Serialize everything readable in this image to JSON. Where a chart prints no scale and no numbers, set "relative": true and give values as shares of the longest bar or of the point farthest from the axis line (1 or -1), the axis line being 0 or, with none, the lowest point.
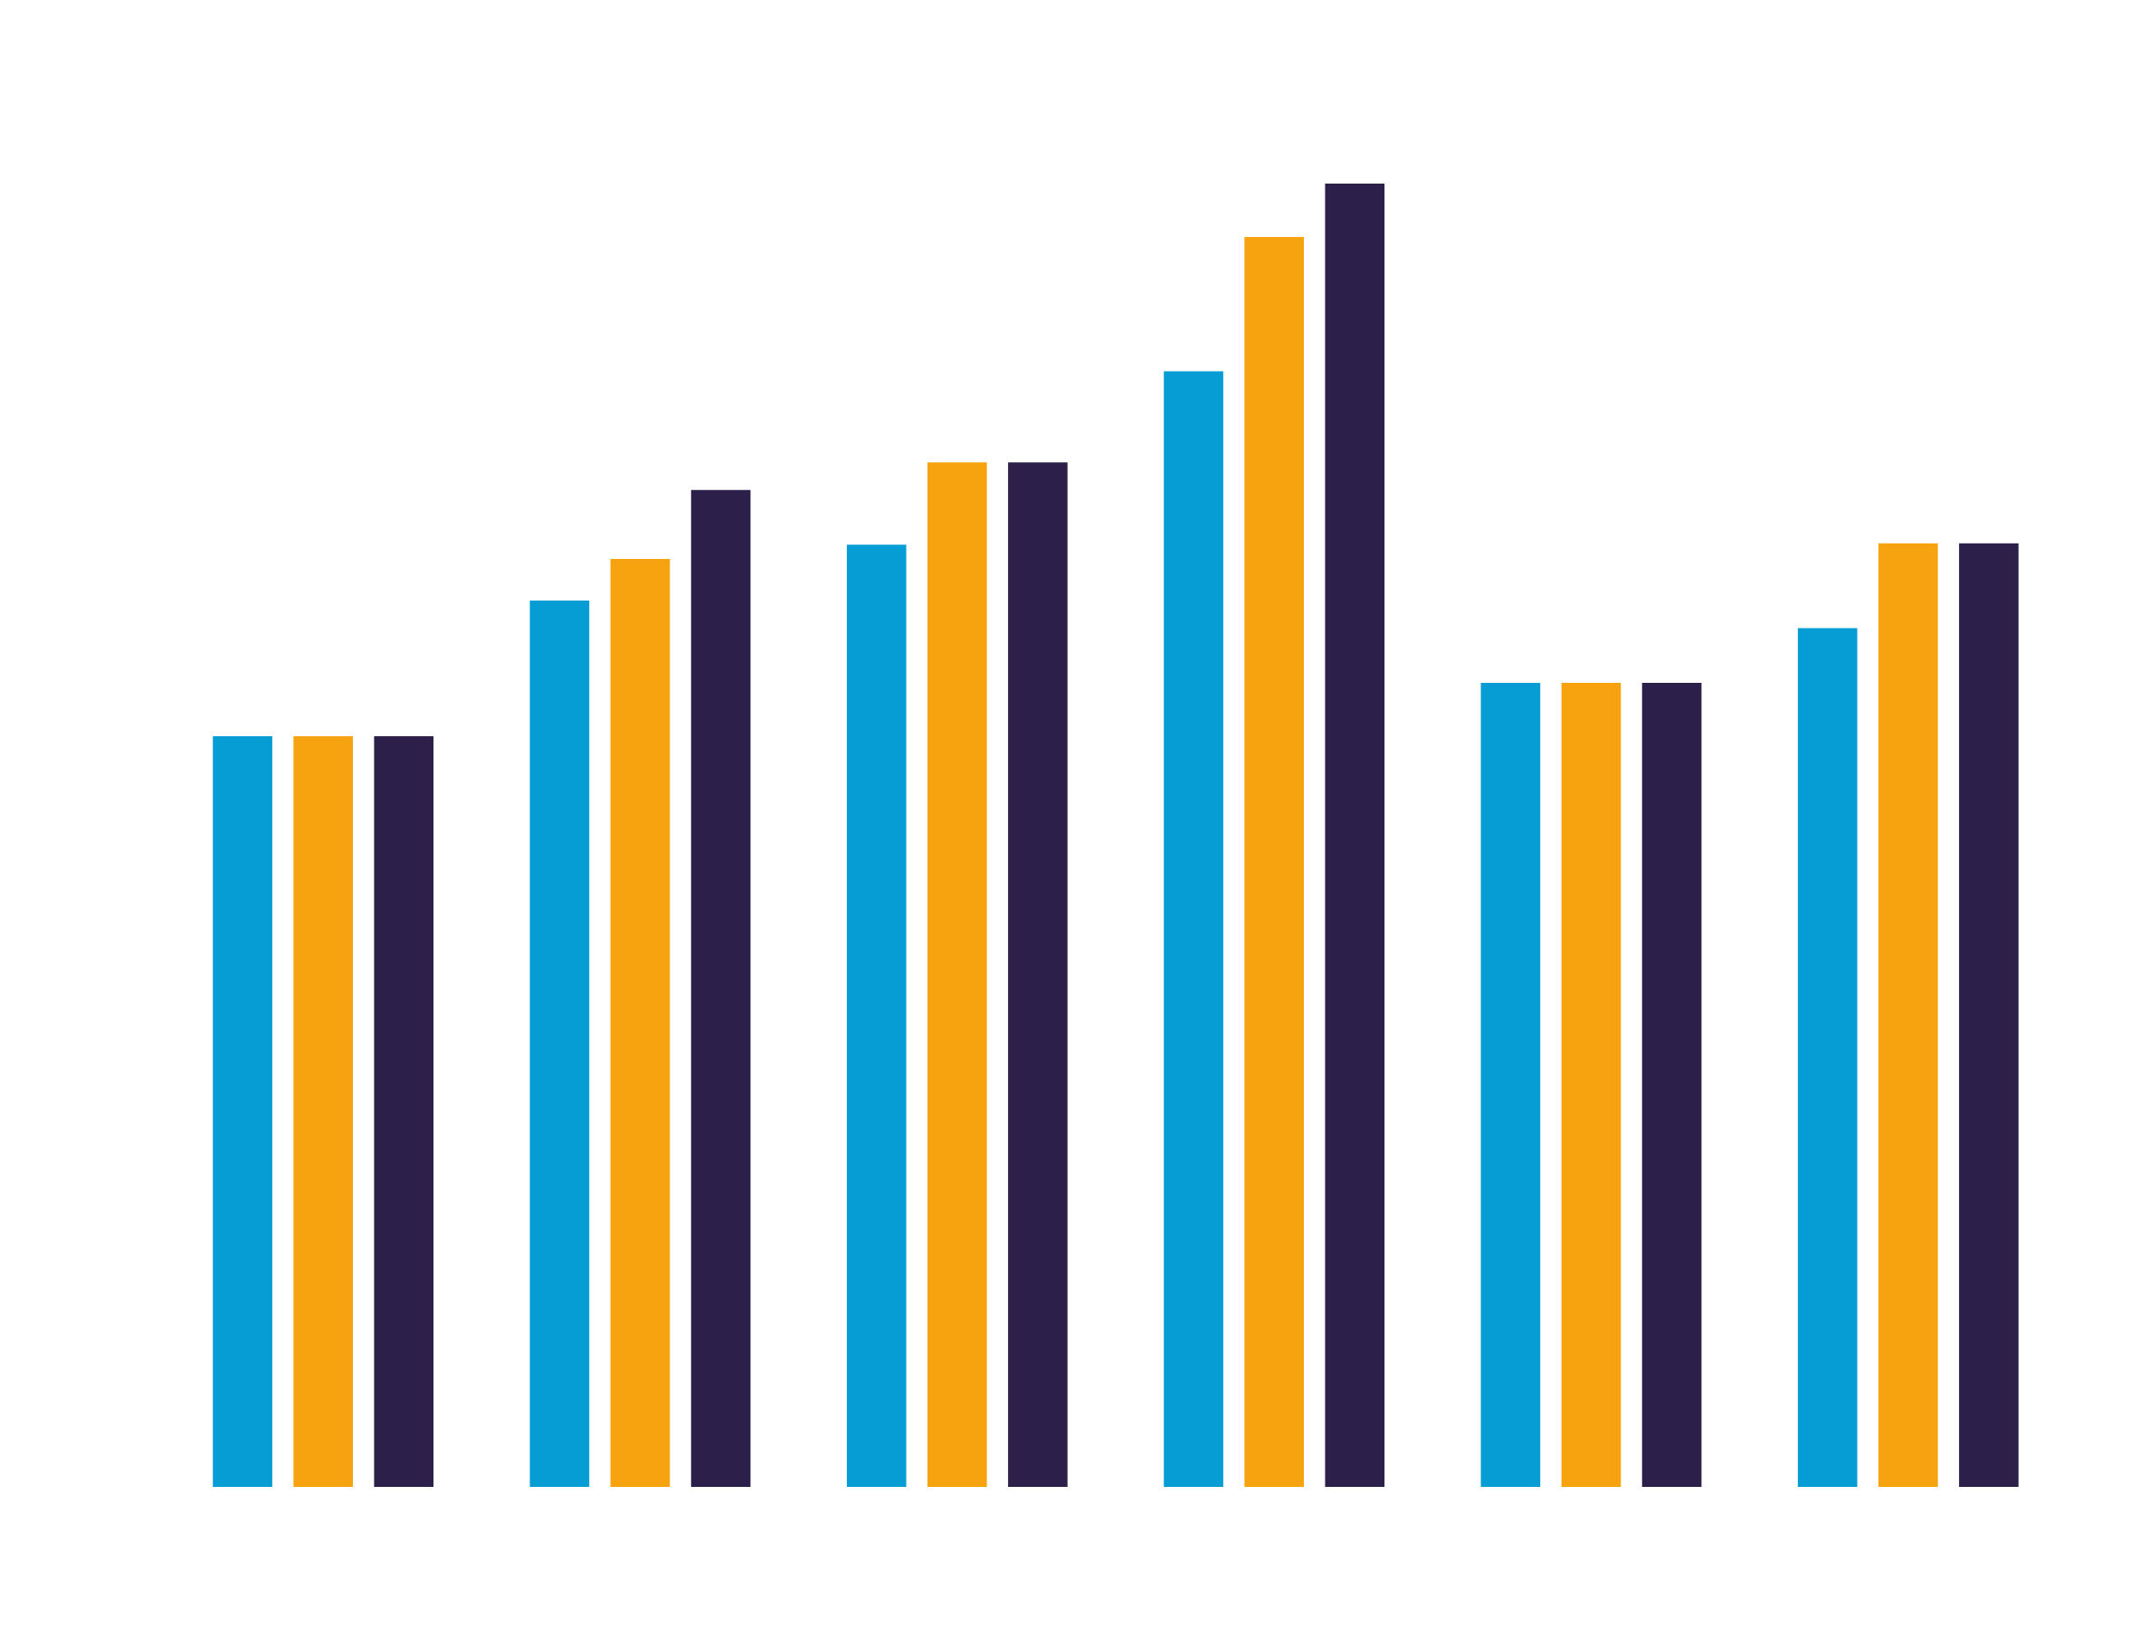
{
  "chart_data": {
    "type": "bar",
    "relative": true,
    "categories": [
      null,
      null,
      null,
      null,
      null,
      null
    ],
    "series": [
      {
        "color": "#059dd3",
        "values": [
          0.576,
          0.68,
          0.723,
          0.856,
          0.617,
          0.659
        ]
      },
      {
        "color": "#f6a30f",
        "values": [
          0.576,
          0.712,
          0.786,
          0.959,
          0.617,
          0.724
        ]
      },
      {
        "color": "#2c1f4a",
        "values": [
          0.576,
          0.765,
          0.786,
          1,
          0.617,
          0.724
        ]
      }
    ]
  }
}
